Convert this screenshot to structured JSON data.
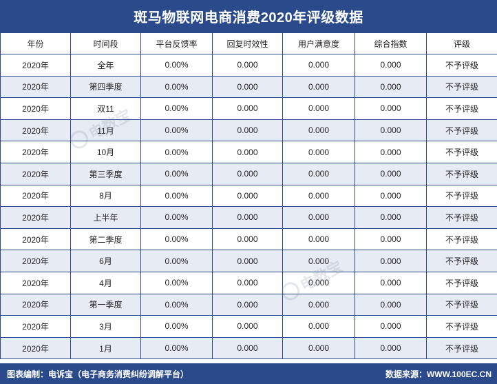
{
  "title": "斑马物联网电商消费2020年评级数据",
  "columns": [
    "年份",
    "时间段",
    "平台反馈率",
    "回复时效性",
    "用户满意度",
    "综合指数",
    "评级"
  ],
  "rows": [
    [
      "2020年",
      "全年",
      "0.00%",
      "0.000",
      "0.000",
      "0.000",
      "不予评级"
    ],
    [
      "2020年",
      "第四季度",
      "0.00%",
      "0.000",
      "0.000",
      "0.000",
      "不予评级"
    ],
    [
      "2020年",
      "双11",
      "0.00%",
      "0.000",
      "0.000",
      "0.000",
      "不予评级"
    ],
    [
      "2020年",
      "11月",
      "0.00%",
      "0.000",
      "0.000",
      "0.000",
      "不予评级"
    ],
    [
      "2020年",
      "10月",
      "0.00%",
      "0.000",
      "0.000",
      "0.000",
      "不予评级"
    ],
    [
      "2020年",
      "第三季度",
      "0.00%",
      "0.000",
      "0.000",
      "0.000",
      "不予评级"
    ],
    [
      "2020年",
      "8月",
      "0.00%",
      "0.000",
      "0.000",
      "0.000",
      "不予评级"
    ],
    [
      "2020年",
      "上半年",
      "0.00%",
      "0.000",
      "0.000",
      "0.000",
      "不予评级"
    ],
    [
      "2020年",
      "第二季度",
      "0.00%",
      "0.000",
      "0.000",
      "0.000",
      "不予评级"
    ],
    [
      "2020年",
      "6月",
      "0.00%",
      "0.000",
      "0.000",
      "0.000",
      "不予评级"
    ],
    [
      "2020年",
      "4月",
      "0.00%",
      "0.000",
      "0.000",
      "0.000",
      "不予评级"
    ],
    [
      "2020年",
      "第一季度",
      "0.00%",
      "0.000",
      "0.000",
      "0.000",
      "不予评级"
    ],
    [
      "2020年",
      "3月",
      "0.00%",
      "0.000",
      "0.000",
      "0.000",
      "不予评级"
    ],
    [
      "2020年",
      "1月",
      "0.00%",
      "0.000",
      "0.000",
      "0.000",
      "不予评级"
    ]
  ],
  "footer": {
    "left": "图表编制：电诉宝（电子商务消费纠纷调解平台）",
    "right": "数据来源：WWW.100EC.CN"
  },
  "watermark": {
    "text": "电数宝"
  },
  "colors": {
    "header_bg": "#2a4a8c",
    "alt_row_bg": "#e7ebf3",
    "border": "#2a4a8c"
  }
}
